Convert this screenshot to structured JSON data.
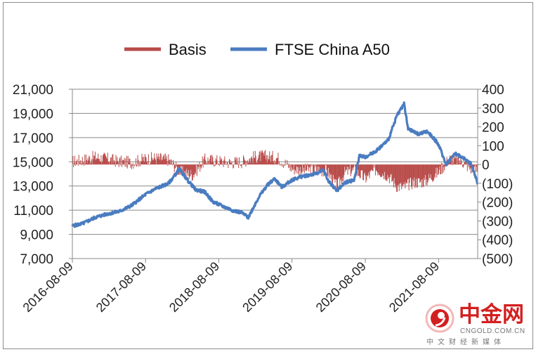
{
  "chart_data": {
    "type": "line",
    "title": "",
    "legend": {
      "placement": "top",
      "entries": [
        {
          "name": "Basis",
          "color": "#b84a48"
        },
        {
          "name": "FTSE China A50",
          "color": "#4a7cc0"
        }
      ]
    },
    "x_tick_labels": [
      "2016-08-09",
      "2017-08-09",
      "2018-08-09",
      "2019-08-09",
      "2020-08-09",
      "2021-08-09"
    ],
    "x_range": [
      "2016-08-09",
      "2022-02-20"
    ],
    "left_axis": {
      "ylim": [
        7000,
        21000
      ],
      "tick_values": [
        7000,
        9000,
        11000,
        13000,
        15000,
        17000,
        19000,
        21000
      ],
      "tick_labels": [
        "7,000",
        "9,000",
        "11,000",
        "13,000",
        "15,000",
        "17,000",
        "19,000",
        "21,000"
      ]
    },
    "right_axis": {
      "ylim": [
        -500,
        400
      ],
      "tick_values": [
        400,
        300,
        200,
        100,
        0,
        -100,
        -200,
        -300,
        -400,
        -500
      ],
      "tick_labels": [
        "400",
        "300",
        "200",
        "100",
        "0",
        "(100)",
        "(200)",
        "(300)",
        "(400)",
        "(500)"
      ]
    },
    "grid": true,
    "series": [
      {
        "name": "FTSE China A50",
        "axis": "left",
        "color": "#4a7cc0",
        "x": [
          "2016-08-09",
          "2016-10-01",
          "2016-12-01",
          "2017-02-01",
          "2017-04-01",
          "2017-06-01",
          "2017-08-09",
          "2017-10-01",
          "2017-12-01",
          "2018-01-25",
          "2018-03-01",
          "2018-04-15",
          "2018-06-01",
          "2018-07-10",
          "2018-09-01",
          "2018-10-15",
          "2018-12-01",
          "2019-01-03",
          "2019-02-25",
          "2019-04-10",
          "2019-05-15",
          "2019-06-20",
          "2019-08-09",
          "2019-10-01",
          "2019-12-01",
          "2020-01-15",
          "2020-02-03",
          "2020-03-20",
          "2020-05-01",
          "2020-06-15",
          "2020-07-10",
          "2020-08-09",
          "2020-10-01",
          "2020-12-01",
          "2021-01-15",
          "2021-02-18",
          "2021-03-10",
          "2021-05-01",
          "2021-06-15",
          "2021-07-28",
          "2021-08-09",
          "2021-09-15",
          "2021-11-01",
          "2021-12-20",
          "2022-01-20",
          "2022-02-20"
        ],
        "values": [
          9700,
          9900,
          10400,
          10700,
          10900,
          11400,
          12300,
          12800,
          13200,
          14400,
          13600,
          12700,
          12500,
          11700,
          11300,
          11000,
          10800,
          10400,
          12100,
          13100,
          13600,
          12900,
          13500,
          13800,
          14000,
          14300,
          13500,
          12600,
          13300,
          13500,
          15500,
          15400,
          15900,
          16800,
          18900,
          19800,
          17700,
          17300,
          17500,
          16700,
          16400,
          14800,
          15700,
          15200,
          14800,
          13200
        ]
      },
      {
        "name": "Basis",
        "axis": "right",
        "color": "#b84a48",
        "x": [
          "2016-08-09",
          "2016-10-01",
          "2016-12-01",
          "2017-02-01",
          "2017-04-01",
          "2017-06-01",
          "2017-08-09",
          "2017-10-01",
          "2017-12-01",
          "2018-02-01",
          "2018-04-01",
          "2018-06-01",
          "2018-08-09",
          "2018-10-01",
          "2018-12-01",
          "2019-02-01",
          "2019-04-01",
          "2019-06-01",
          "2019-08-09",
          "2019-10-01",
          "2019-12-01",
          "2020-02-01",
          "2020-03-20",
          "2020-05-01",
          "2020-06-15",
          "2020-08-09",
          "2020-10-01",
          "2020-12-01",
          "2021-01-15",
          "2021-02-18",
          "2021-04-01",
          "2021-06-01",
          "2021-08-09",
          "2021-10-01",
          "2021-12-01",
          "2022-01-20",
          "2022-02-20"
        ],
        "values": [
          15,
          25,
          40,
          30,
          15,
          10,
          30,
          35,
          25,
          -40,
          -55,
          25,
          20,
          10,
          15,
          40,
          45,
          35,
          -20,
          -30,
          -25,
          -35,
          -120,
          -40,
          -30,
          -75,
          -25,
          -60,
          -115,
          -120,
          -95,
          -90,
          -40,
          30,
          20,
          -25,
          -30
        ]
      }
    ]
  },
  "watermark": {
    "text_cn": "中金网",
    "url": "CNGOLD.COM.CN",
    "sub": "中文财经新媒体",
    "logo_color": "#d31f1f"
  }
}
